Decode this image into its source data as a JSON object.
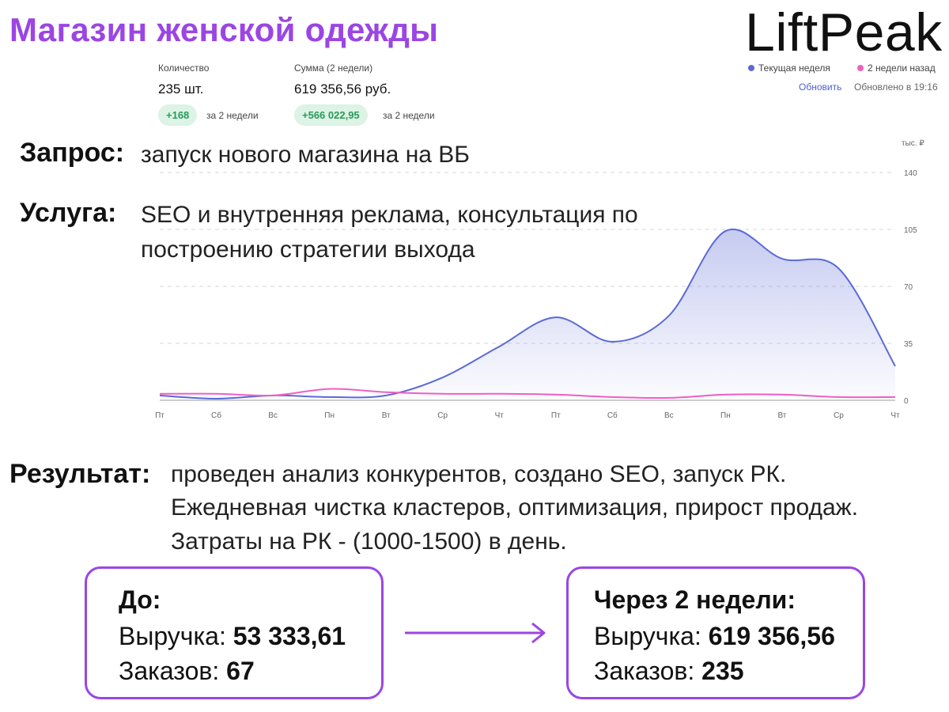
{
  "header": {
    "title": "Магазин женской одежды",
    "logo": "LiftPeak"
  },
  "stats": {
    "qty_label": "Количество",
    "qty_value": "235 шт.",
    "qty_delta": "+168",
    "qty_delta_note": "за 2 недели",
    "sum_label": "Сумма (2 недели)",
    "sum_value": "619 356,56 руб.",
    "sum_delta": "+566 022,95",
    "sum_delta_note": "за 2 недели"
  },
  "legend": {
    "current": "Текущая неделя",
    "previous": "2 недели назад",
    "refresh": "Обновить",
    "updated": "Обновлено в 19:16"
  },
  "request": {
    "label": "Запрос:",
    "text": "запуск нового магазина на ВБ"
  },
  "service": {
    "label": "Услуга:",
    "line1": "SEO и внутренняя реклама, консультация по",
    "line2": "построению стратегии выхода"
  },
  "result": {
    "label": "Результат:",
    "line1": "проведен анализ конкурентов, создано SEO, запуск РК.",
    "line2": "Ежедневная чистка кластеров, оптимизация, прирост продаж.",
    "line3": "Затраты на РК - (1000-1500) в день."
  },
  "before": {
    "title": "До:",
    "revenue_label": "Выручка: ",
    "revenue_value": "53 333,61",
    "orders_label": "Заказов: ",
    "orders_value": "67"
  },
  "after": {
    "title": "Через 2 недели:",
    "revenue_label": "Выручка: ",
    "revenue_value": "619 356,56",
    "orders_label": "Заказов: ",
    "orders_value": "235"
  },
  "colors": {
    "accent": "#9b45e4",
    "current_series": "#5b6ad6",
    "previous_series": "#ee5fc4",
    "positive": "#2b9a5a"
  },
  "chart_data": {
    "type": "area",
    "unit_label": "тыс. ₽",
    "categories": [
      "Пт",
      "Сб",
      "Вс",
      "Пн",
      "Вт",
      "Ср",
      "Чт",
      "Пт",
      "Сб",
      "Вс",
      "Пн",
      "Вт",
      "Ср",
      "Чт"
    ],
    "yticks": [
      0,
      35,
      70,
      105,
      140
    ],
    "ylim": [
      0,
      140
    ],
    "grid": true,
    "series": [
      {
        "name": "Текущая неделя",
        "values": [
          3,
          1,
          3,
          2,
          3,
          14,
          33,
          51,
          36,
          52,
          104,
          87,
          81,
          21
        ]
      },
      {
        "name": "2 недели назад",
        "values": [
          4,
          4,
          3,
          7,
          5,
          4,
          4,
          3.5,
          2,
          1.5,
          3.5,
          3.5,
          2,
          2
        ]
      }
    ]
  }
}
